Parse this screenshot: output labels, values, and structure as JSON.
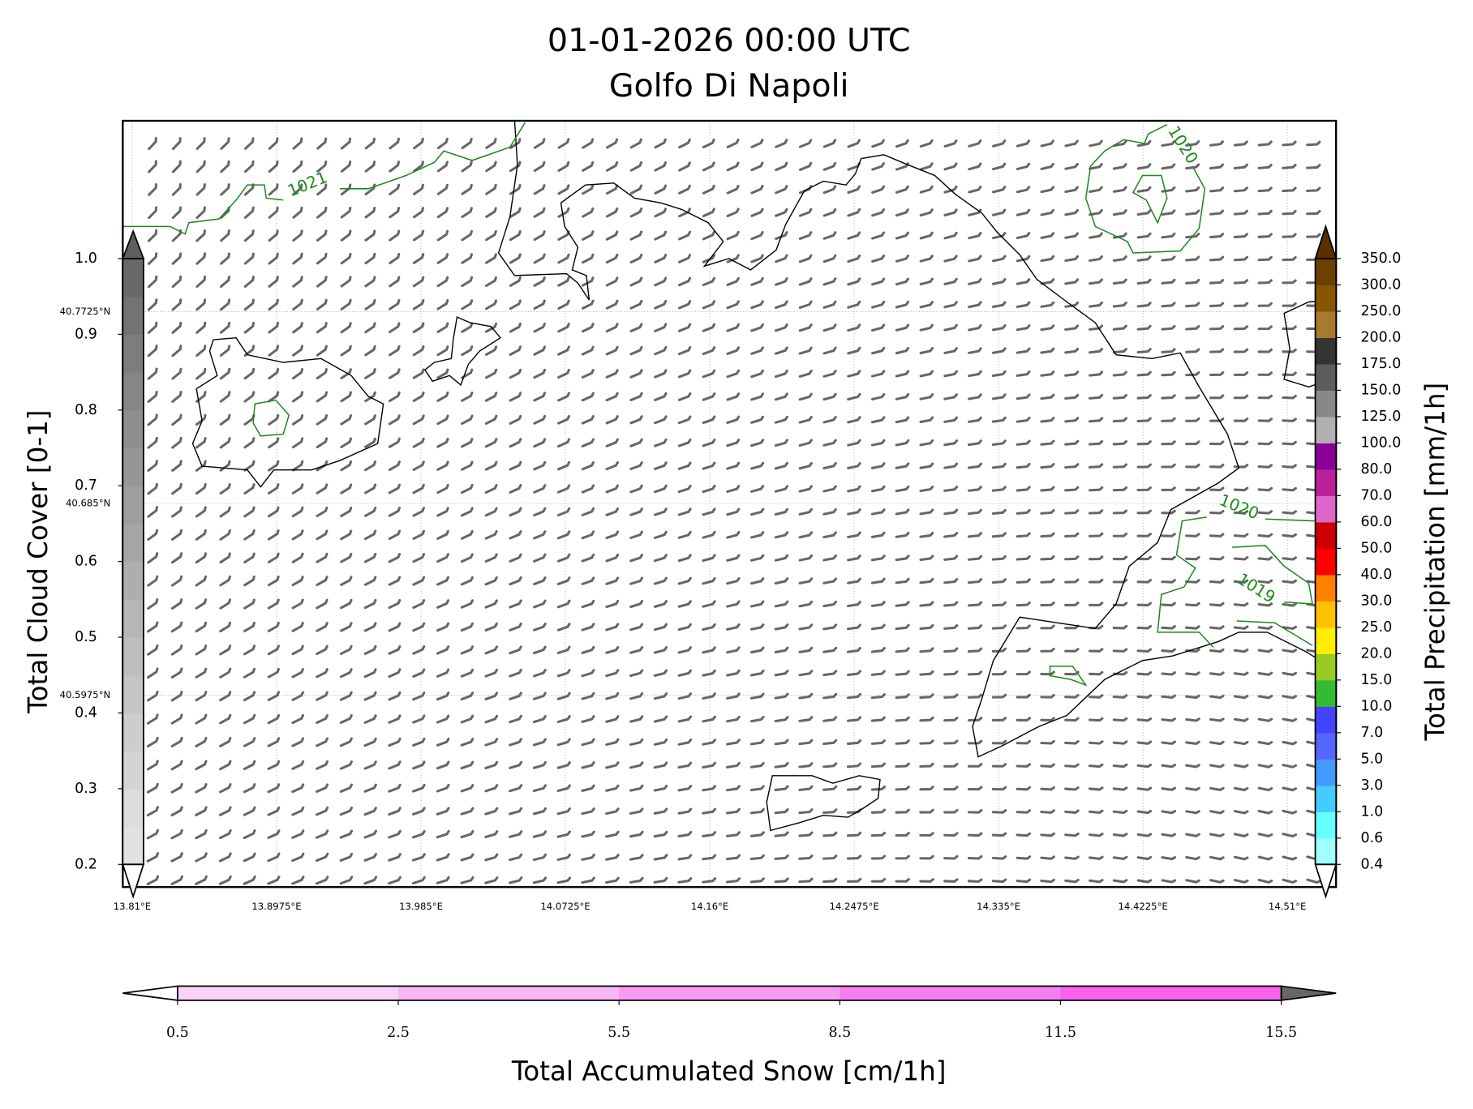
{
  "chart_data": {
    "type": "map",
    "title": "01-01-2026 00:00 UTC",
    "subtitle": "Golfo Di Napoli",
    "xlim": [
      13.8043,
      14.5395
    ],
    "ylim": [
      40.51,
      40.8596
    ],
    "grid": true,
    "xticks": [
      {
        "value": 13.81,
        "label": "13.81°E"
      },
      {
        "value": 13.8975,
        "label": "13.8975°E"
      },
      {
        "value": 13.985,
        "label": "13.985°E"
      },
      {
        "value": 14.0725,
        "label": "14.0725°E"
      },
      {
        "value": 14.16,
        "label": "14.16°E"
      },
      {
        "value": 14.2475,
        "label": "14.2475°E"
      },
      {
        "value": 14.335,
        "label": "14.335°E"
      },
      {
        "value": 14.4225,
        "label": "14.4225°E"
      },
      {
        "value": 14.51,
        "label": "14.51°E"
      }
    ],
    "yticks": [
      {
        "value": 40.7725,
        "label": "40.7725°N"
      },
      {
        "value": 40.685,
        "label": "40.685°N"
      },
      {
        "value": 40.5975,
        "label": "40.5975°N"
      }
    ],
    "contours": [
      {
        "level": 1021
      },
      {
        "level": 1020
      },
      {
        "level": 1020
      },
      {
        "level": 1019
      }
    ],
    "colorbars": [
      {
        "label": "Total Cloud Cover [0-1]",
        "ylim": [
          0.2,
          1.0
        ],
        "ticks": [
          0.2,
          0.3,
          0.4,
          0.5,
          0.6,
          0.7,
          0.8,
          0.9,
          {
            "value": 1.0,
            "label": "1.0"
          }
        ],
        "colors": [
          "#e2e2e2",
          "#dcdcdc",
          "#d4d4d4",
          "#cdcdcd",
          "#c5c5c5",
          "#bebebe",
          "#b6b6b6",
          "#aeaeae",
          "#a6a6a6",
          "#9e9e9e",
          "#969696",
          "#8e8e8e",
          "#868686",
          "#7d7d7d",
          "#737373",
          "#686868"
        ],
        "extend_colors": [
          "#ffffff",
          "#5e5e5e"
        ]
      },
      {
        "label": "Total Precipitation [mm/1h]",
        "ticks": [
          0.4,
          0.6,
          {
            "value": 1,
            "label": "1.0"
          },
          {
            "value": 3,
            "label": "3.0"
          },
          {
            "value": 5,
            "label": "5.0"
          },
          {
            "value": 7,
            "label": "7.0"
          },
          {
            "value": 10,
            "label": "10.0"
          },
          {
            "value": 15,
            "label": "15.0"
          },
          {
            "value": 20,
            "label": "20.0"
          },
          {
            "value": 25,
            "label": "25.0"
          },
          {
            "value": 30,
            "label": "30.0"
          },
          {
            "value": 40,
            "label": "40.0"
          },
          {
            "value": 50,
            "label": "50.0"
          },
          {
            "value": 60,
            "label": "60.0"
          },
          {
            "value": 70,
            "label": "70.0"
          },
          {
            "value": 80,
            "label": "80.0"
          },
          {
            "value": 100,
            "label": "100.0"
          },
          {
            "value": 125,
            "label": "125.0"
          },
          {
            "value": 150,
            "label": "150.0"
          },
          {
            "value": 175,
            "label": "175.0"
          },
          {
            "value": 200,
            "label": "200.0"
          },
          {
            "value": 250,
            "label": "250.0"
          },
          {
            "value": 300,
            "label": "300.0"
          },
          {
            "value": 350,
            "label": "350.0"
          }
        ],
        "colors": [
          "#a0ffff",
          "#66ffff",
          "#44ccff",
          "#4499ff",
          "#5566ff",
          "#4444ff",
          "#33bb33",
          "#99cc22",
          "#ffee00",
          "#ffc000",
          "#ff8000",
          "#ff0000",
          "#cc0000",
          "#dd66cc",
          "#bb2299",
          "#880099",
          "#b0b0b0",
          "#888888",
          "#5c5c5c",
          "#333333",
          "#a87a30",
          "#885500",
          "#6b4000"
        ],
        "extend_colors": [
          "#ffffff",
          "#5a3000"
        ]
      },
      {
        "label": "Total Accumulated Snow [cm/1h]",
        "ticks": [
          0.5,
          2.5,
          5.5,
          8.5,
          11.5,
          15.5
        ],
        "colors": [
          "#fad2f8",
          "#f8b6f4",
          "#f89af2",
          "#f87ef0",
          "#f862ee"
        ],
        "extend_colors": [
          "#ffffff",
          "#666666"
        ]
      }
    ]
  }
}
